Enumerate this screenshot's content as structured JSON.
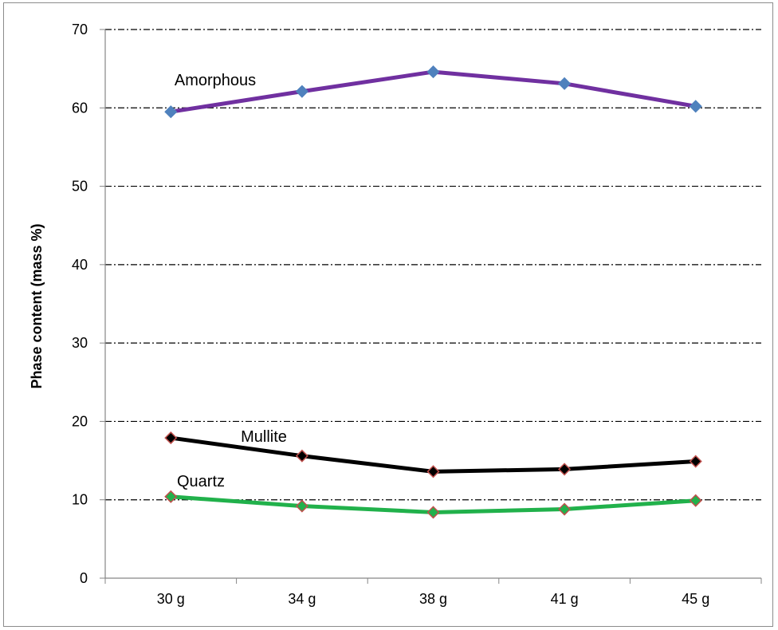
{
  "chart_data": {
    "type": "line",
    "categories": [
      "30 g",
      "34 g",
      "38 g",
      "41 g",
      "45 g"
    ],
    "ylabel": "Phase content (mass %)",
    "ylim": [
      0,
      70
    ],
    "yticks": [
      0,
      10,
      20,
      30,
      40,
      50,
      60,
      70
    ],
    "grid": true,
    "series": [
      {
        "name": "Amorphous",
        "values": [
          59.5,
          62.1,
          64.6,
          63.1,
          60.2
        ],
        "line_color": "#7030a0",
        "marker_color": "#4f81bd",
        "marker_edge": "#4f81bd"
      },
      {
        "name": "Mullite",
        "values": [
          17.9,
          15.6,
          13.6,
          13.9,
          14.9
        ],
        "line_color": "#000000",
        "marker_color": "#000000",
        "marker_edge": "#c0504d"
      },
      {
        "name": "Quartz",
        "values": [
          10.4,
          9.2,
          8.4,
          8.8,
          9.9
        ],
        "line_color": "#21b14b",
        "marker_color": "#21b14b",
        "marker_edge": "#c0504d"
      }
    ]
  }
}
